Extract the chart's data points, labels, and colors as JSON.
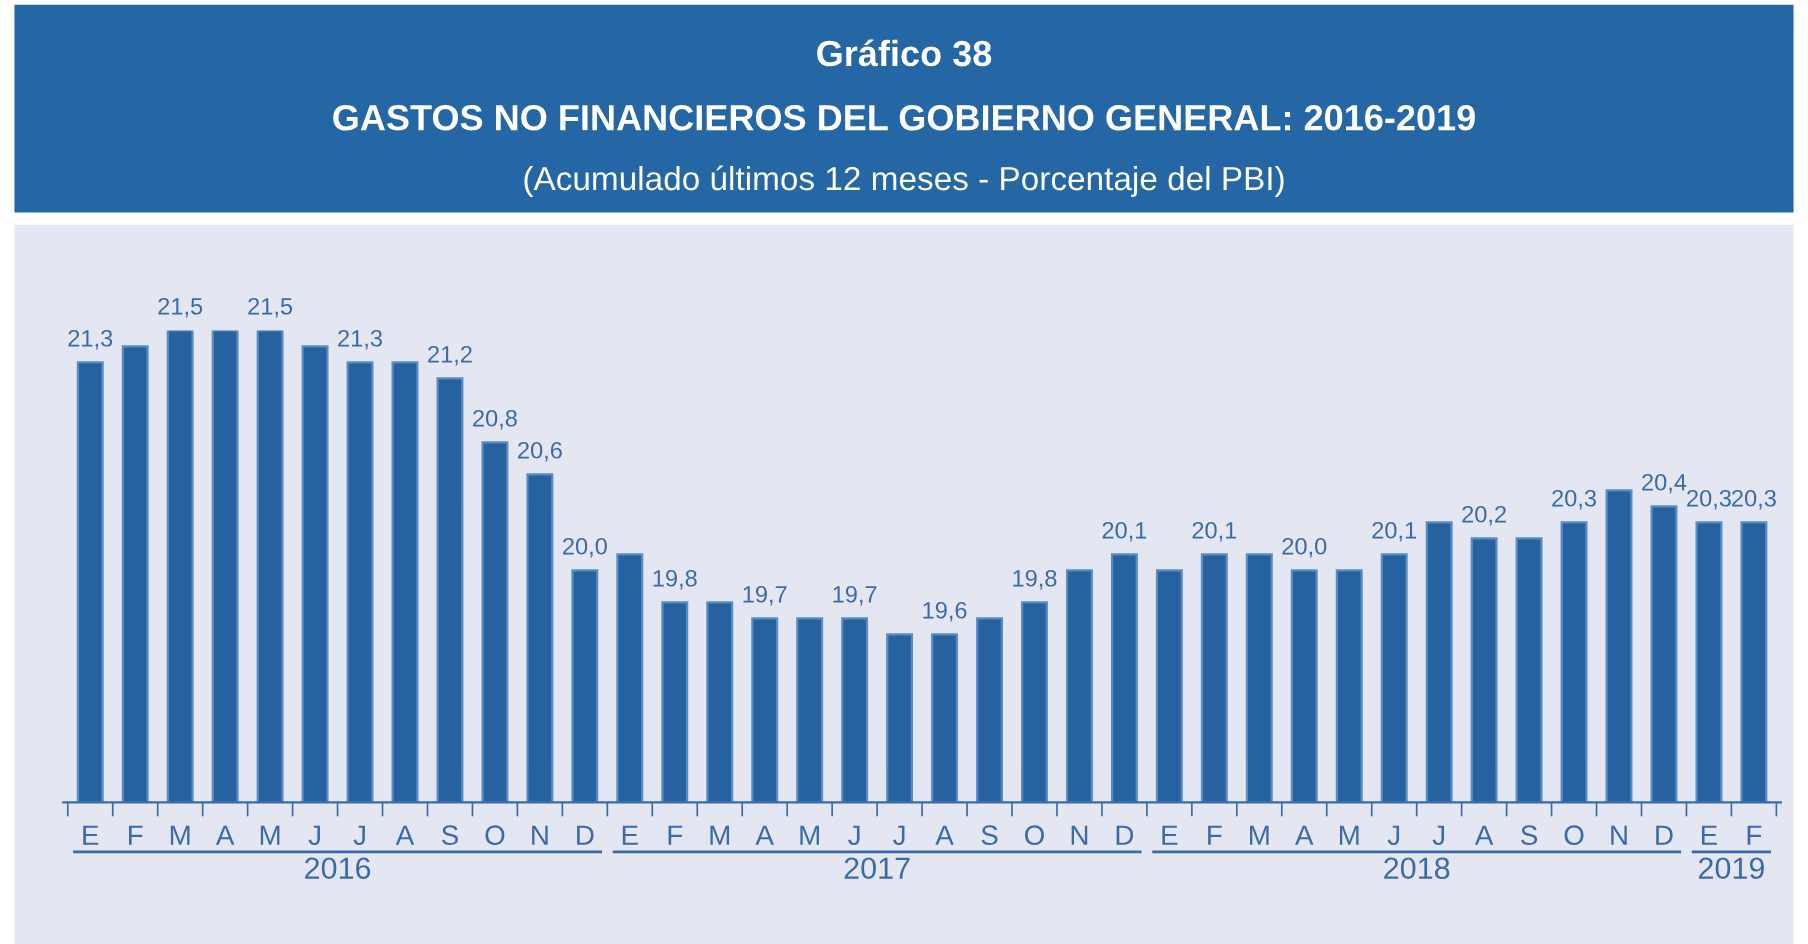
{
  "chart_data": {
    "type": "bar",
    "title": "Gráfico 38\nGASTOS NO FINANCIEROS DEL GOBIERNO GENERAL: 2016-2019",
    "subtitle": "(Acumulado últimos 12 meses - Porcentaje del PBI)",
    "categories": [
      "E",
      "F",
      "M",
      "A",
      "M",
      "J",
      "J",
      "A",
      "S",
      "O",
      "N",
      "D",
      "E",
      "F",
      "M",
      "A",
      "M",
      "J",
      "J",
      "A",
      "S",
      "O",
      "N",
      "D",
      "E",
      "F",
      "M",
      "A",
      "M",
      "J",
      "J",
      "A",
      "S",
      "O",
      "N",
      "D",
      "E",
      "F"
    ],
    "values": [
      21.3,
      21.4,
      21.5,
      21.5,
      21.5,
      21.4,
      21.3,
      21.3,
      21.2,
      20.8,
      20.6,
      20.0,
      20.1,
      19.8,
      19.8,
      19.7,
      19.7,
      19.7,
      19.6,
      19.6,
      19.7,
      19.8,
      20.0,
      20.1,
      20.0,
      20.1,
      20.1,
      20.0,
      20.0,
      20.1,
      20.3,
      20.2,
      20.2,
      20.3,
      20.5,
      20.4,
      20.3,
      20.3
    ],
    "value_labels": [
      "21,3",
      null,
      "21,5",
      null,
      "21,5",
      null,
      "21,3",
      null,
      "21,2",
      "20,8",
      "20,6",
      "20,0",
      null,
      "19,8",
      null,
      "19,7",
      null,
      "19,7",
      null,
      "19,6",
      null,
      "19,8",
      null,
      "20,1",
      null,
      "20,1",
      null,
      "20,0",
      null,
      "20,1",
      null,
      "20,2",
      null,
      "20,3",
      null,
      "20,4",
      "20,3",
      "20,3"
    ],
    "color": "#2662a0",
    "ylim": [
      18.55,
      21.5
    ],
    "annotations": [
      "2016",
      "2017",
      "2018",
      "2019"
    ],
    "grid": false,
    "legend": false
  }
}
